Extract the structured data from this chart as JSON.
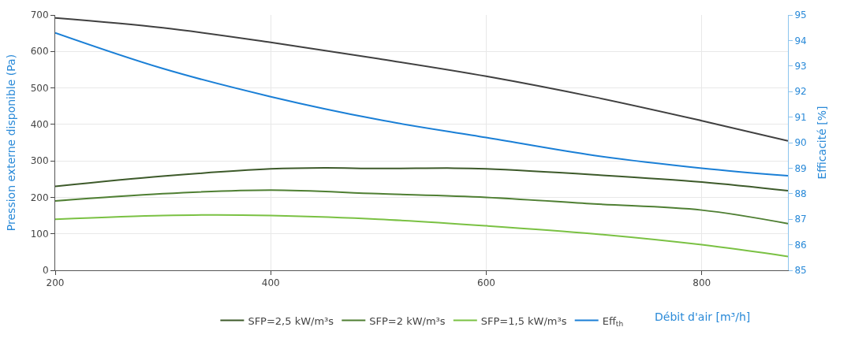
{
  "chart_data": {
    "type": "line",
    "xlabel": "Débit d'air [m³/h]",
    "ylabel": "Pression externe disponible (Pa)",
    "y2label": "Efficacité [%]",
    "xlim": [
      200,
      880
    ],
    "xticks": [
      200,
      400,
      600,
      800
    ],
    "ylim": [
      0,
      700
    ],
    "yticks": [
      0,
      100,
      200,
      300,
      400,
      500,
      600,
      700
    ],
    "y2lim": [
      85,
      95
    ],
    "y2ticks": [
      85,
      86,
      87,
      88,
      89,
      90,
      91,
      92,
      93,
      94,
      95
    ],
    "grid": true,
    "legend": "bottom",
    "marker": "none",
    "line_style": "solid",
    "series": [
      {
        "color": "#404040",
        "x": [
          200,
          300,
          400,
          500,
          600,
          700,
          800,
          880
        ],
        "values": [
          692,
          665,
          625,
          580,
          532,
          475,
          410,
          355
        ]
      },
      {
        "name": "SFP=2,5 kW/m³s",
        "color": "#3d5a2a",
        "x": [
          200,
          300,
          400,
          450,
          500,
          570,
          600,
          700,
          800,
          880
        ],
        "values": [
          230,
          258,
          278,
          281,
          279,
          280,
          278,
          262,
          242,
          218
        ]
      },
      {
        "name": "SFP=2 kW/m³s",
        "color": "#4f7f33",
        "x": [
          200,
          300,
          400,
          500,
          600,
          700,
          800,
          880
        ],
        "values": [
          190,
          210,
          220,
          210,
          200,
          182,
          165,
          128
        ]
      },
      {
        "name": "SFP=1,5 kW/m³s",
        "color": "#7ac143",
        "x": [
          200,
          300,
          350,
          400,
          500,
          600,
          700,
          800,
          880
        ],
        "values": [
          140,
          150,
          152,
          150,
          140,
          122,
          100,
          70,
          38
        ]
      },
      {
        "name": "Eff$_{th}$",
        "color": "#1a7fd6",
        "axis": "y2",
        "x": [
          200,
          300,
          400,
          500,
          600,
          700,
          800,
          880
        ],
        "values": [
          94.3,
          92.9,
          91.8,
          90.9,
          90.2,
          89.5,
          89.0,
          88.7
        ]
      }
    ]
  }
}
